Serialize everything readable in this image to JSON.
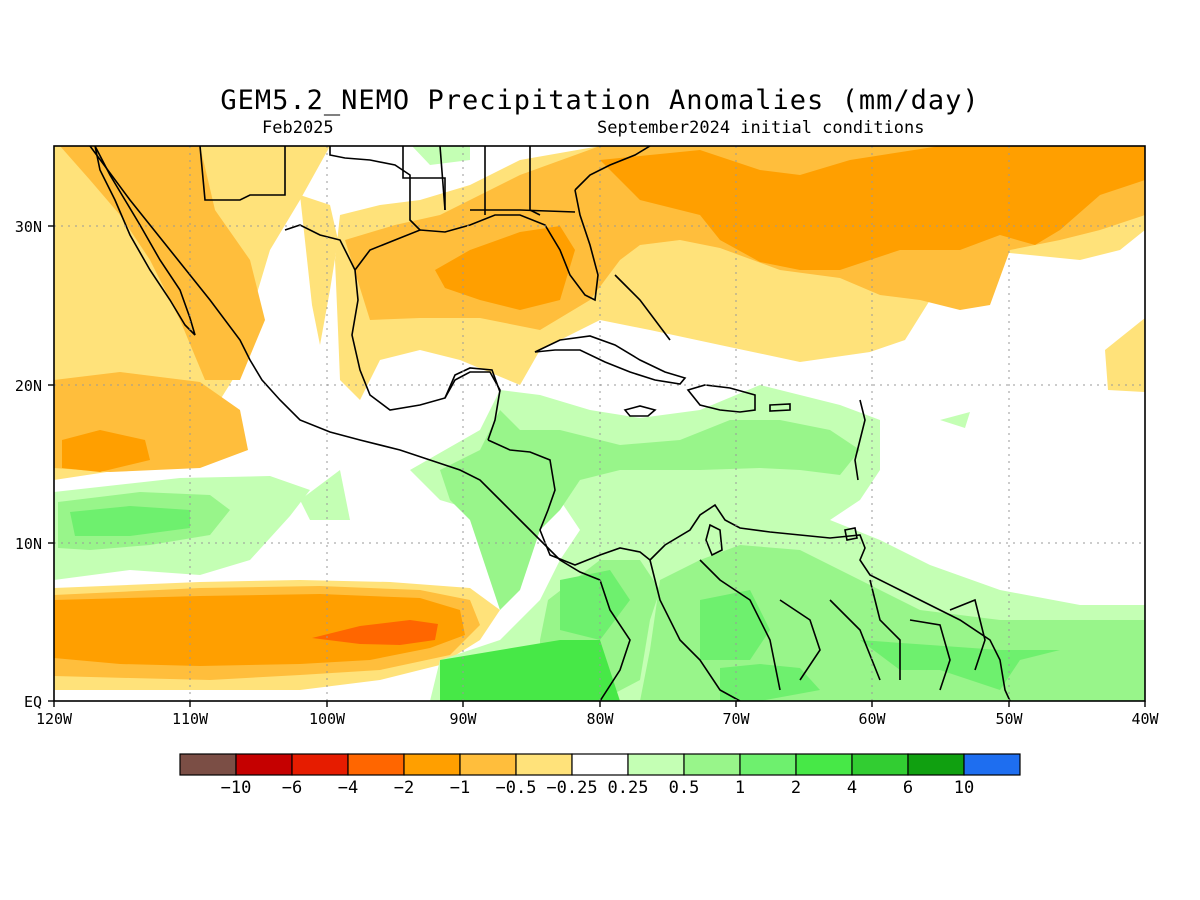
{
  "title": "GEM5.2_NEMO Precipitation Anomalies (mm/day)",
  "subtitle_left": "Feb2025",
  "subtitle_right": "September2024 initial conditions",
  "map": {
    "lon_range": [
      -120,
      -40
    ],
    "lat_range": [
      0,
      35
    ],
    "grid": true,
    "x_ticks": [
      "120W",
      "110W",
      "100W",
      "90W",
      "80W",
      "70W",
      "60W",
      "50W",
      "40W"
    ],
    "y_ticks": [
      "EQ",
      "10N",
      "20N",
      "30N"
    ]
  },
  "colorbar": {
    "colors": [
      "#7b4e45",
      "#c50000",
      "#e61c00",
      "#ff6600",
      "#ff9f00",
      "#ffbe3c",
      "#ffe27a",
      "#ffffff",
      "#c4ffb4",
      "#98f58a",
      "#6ef06e",
      "#47e847",
      "#32cd32",
      "#10a010",
      "#1e6ef0"
    ],
    "labels": [
      "−10",
      "−6",
      "−4",
      "−2",
      "−1",
      "−0.5",
      "−0.25",
      "0.25",
      "0.5",
      "1",
      "2",
      "4",
      "6",
      "10"
    ]
  }
}
